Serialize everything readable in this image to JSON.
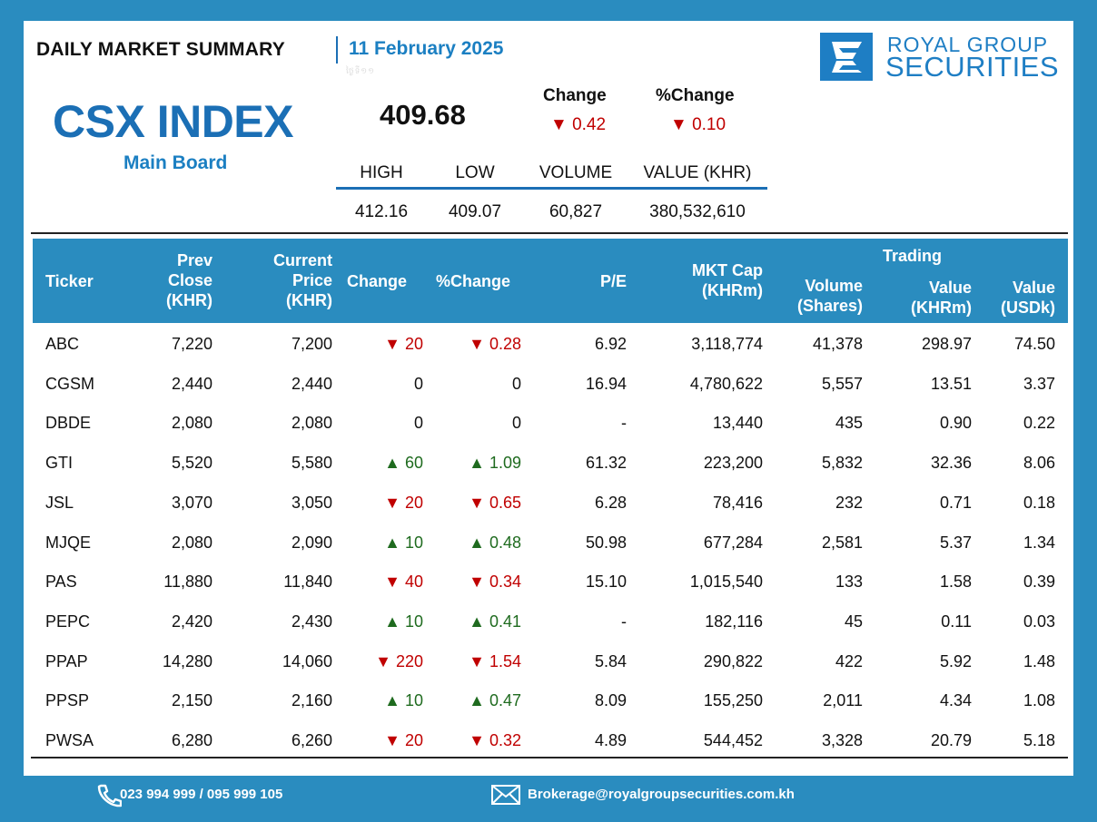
{
  "header": {
    "title": "DAILY MARKET SUMMARY",
    "date": "11 February 2025",
    "ghost": "ថ្ងៃទី១១"
  },
  "logo": {
    "line1": "ROYAL GROUP",
    "line2": "SECURITIES",
    "color": "#1e7ec4"
  },
  "index": {
    "name": "CSX INDEX",
    "board": "Main Board",
    "value": "409.68",
    "change_label": "Change",
    "pchange_label": "%Change",
    "change": "▼ 0.42",
    "pchange": "▼ 0.10"
  },
  "stats": {
    "labels": [
      "HIGH",
      "LOW",
      "VOLUME",
      "VALUE (KHR)"
    ],
    "values": [
      "412.16",
      "409.07",
      "60,827",
      "380,532,610"
    ]
  },
  "table": {
    "headers": {
      "ticker": "Ticker",
      "prev": [
        "Prev",
        "Close",
        "(KHR)"
      ],
      "current": [
        "Current",
        "Price",
        "(KHR)"
      ],
      "change": "Change",
      "pchange": "%Change",
      "pe": "P/E",
      "mktcap": [
        "MKT Cap",
        "(KHRm)"
      ],
      "trading": "Trading",
      "volume": [
        "Volume",
        "(Shares)"
      ],
      "value_khr": [
        "Value",
        "(KHRm)"
      ],
      "value_usd": [
        "Value",
        "(USDk)"
      ]
    },
    "rows": [
      {
        "ticker": "ABC",
        "prev": "7,220",
        "cur": "7,200",
        "chg": "▼ 20",
        "pchg": "▼ 0.28",
        "dir": "dn",
        "pe": "6.92",
        "cap": "3,118,774",
        "vol": "41,378",
        "vkhr": "298.97",
        "vusd": "74.50"
      },
      {
        "ticker": "CGSM",
        "prev": "2,440",
        "cur": "2,440",
        "chg": "0",
        "pchg": "0",
        "dir": "flat",
        "pe": "16.94",
        "cap": "4,780,622",
        "vol": "5,557",
        "vkhr": "13.51",
        "vusd": "3.37"
      },
      {
        "ticker": "DBDE",
        "prev": "2,080",
        "cur": "2,080",
        "chg": "0",
        "pchg": "0",
        "dir": "flat",
        "pe": "-",
        "cap": "13,440",
        "vol": "435",
        "vkhr": "0.90",
        "vusd": "0.22"
      },
      {
        "ticker": "GTI",
        "prev": "5,520",
        "cur": "5,580",
        "chg": "▲ 60",
        "pchg": "▲ 1.09",
        "dir": "up",
        "pe": "61.32",
        "cap": "223,200",
        "vol": "5,832",
        "vkhr": "32.36",
        "vusd": "8.06"
      },
      {
        "ticker": "JSL",
        "prev": "3,070",
        "cur": "3,050",
        "chg": "▼ 20",
        "pchg": "▼ 0.65",
        "dir": "dn",
        "pe": "6.28",
        "cap": "78,416",
        "vol": "232",
        "vkhr": "0.71",
        "vusd": "0.18"
      },
      {
        "ticker": "MJQE",
        "prev": "2,080",
        "cur": "2,090",
        "chg": "▲ 10",
        "pchg": "▲ 0.48",
        "dir": "up",
        "pe": "50.98",
        "cap": "677,284",
        "vol": "2,581",
        "vkhr": "5.37",
        "vusd": "1.34"
      },
      {
        "ticker": "PAS",
        "prev": "11,880",
        "cur": "11,840",
        "chg": "▼ 40",
        "pchg": "▼ 0.34",
        "dir": "dn",
        "pe": "15.10",
        "cap": "1,015,540",
        "vol": "133",
        "vkhr": "1.58",
        "vusd": "0.39"
      },
      {
        "ticker": "PEPC",
        "prev": "2,420",
        "cur": "2,430",
        "chg": "▲ 10",
        "pchg": "▲ 0.41",
        "dir": "up",
        "pe": "-",
        "cap": "182,116",
        "vol": "45",
        "vkhr": "0.11",
        "vusd": "0.03"
      },
      {
        "ticker": "PPAP",
        "prev": "14,280",
        "cur": "14,060",
        "chg": "▼ 220",
        "pchg": "▼ 1.54",
        "dir": "dn",
        "pe": "5.84",
        "cap": "290,822",
        "vol": "422",
        "vkhr": "5.92",
        "vusd": "1.48"
      },
      {
        "ticker": "PPSP",
        "prev": "2,150",
        "cur": "2,160",
        "chg": "▲ 10",
        "pchg": "▲ 0.47",
        "dir": "up",
        "pe": "8.09",
        "cap": "155,250",
        "vol": "2,011",
        "vkhr": "4.34",
        "vusd": "1.08"
      },
      {
        "ticker": "PWSA",
        "prev": "6,280",
        "cur": "6,260",
        "chg": "▼ 20",
        "pchg": "▼ 0.32",
        "dir": "dn",
        "pe": "4.89",
        "cap": "544,452",
        "vol": "3,328",
        "vkhr": "20.79",
        "vusd": "5.18"
      }
    ]
  },
  "footer": {
    "phone": "023 994 999 / 095 999 105",
    "email": "Brokerage@royalgroupsecurities.com.kh"
  },
  "colors": {
    "accent": "#2a8cbf",
    "title_blue": "#1b6fb5",
    "down": "#c00000",
    "up": "#1f6b1f"
  },
  "icons": [
    "phone-icon",
    "mail-icon",
    "logo-mark-icon"
  ]
}
